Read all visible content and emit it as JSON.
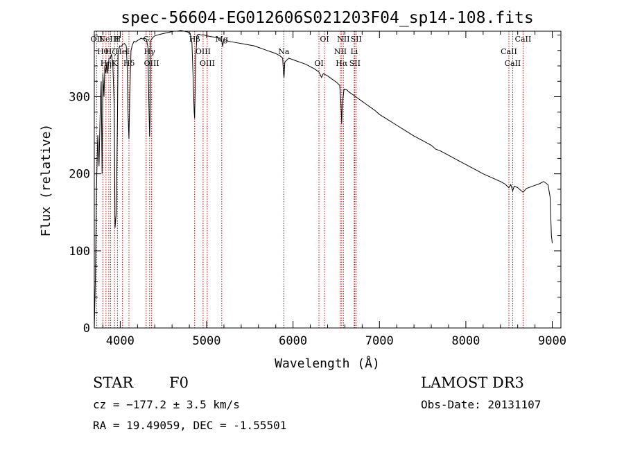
{
  "chart_data": {
    "type": "line",
    "title": "spec-56604-EG012606S021203F04_sp14-108.fits",
    "xlabel": "Wavelength (Å)",
    "ylabel": "Flux (relative)",
    "xlim": [
      3700,
      9100
    ],
    "ylim": [
      0,
      385
    ],
    "xticks": [
      4000,
      5000,
      6000,
      7000,
      8000,
      9000
    ],
    "yticks": [
      0,
      100,
      200,
      300
    ],
    "grid": false,
    "series": [
      {
        "name": "flux",
        "color": "#000000",
        "x": [
          3700,
          3712,
          3725,
          3740,
          3755,
          3770,
          3780,
          3790,
          3800,
          3812,
          3822,
          3835,
          3845,
          3855,
          3870,
          3885,
          3900,
          3915,
          3930,
          3940,
          3955,
          3968,
          3975,
          3985,
          3995,
          4010,
          4030,
          4050,
          4070,
          4080,
          4090,
          4101,
          4110,
          4125,
          4140,
          4160,
          4180,
          4200,
          4220,
          4240,
          4260,
          4280,
          4300,
          4310,
          4320,
          4330,
          4340,
          4345,
          4350,
          4360,
          4380,
          4400,
          4430,
          4460,
          4500,
          4540,
          4580,
          4620,
          4660,
          4700,
          4740,
          4780,
          4810,
          4830,
          4845,
          4856,
          4861,
          4866,
          4875,
          4890,
          4910,
          4940,
          4970,
          5000,
          5050,
          5100,
          5150,
          5180,
          5185,
          5200,
          5250,
          5300,
          5350,
          5400,
          5450,
          5500,
          5550,
          5600,
          5650,
          5700,
          5750,
          5800,
          5850,
          5880,
          5890,
          5896,
          5905,
          5950,
          6000,
          6050,
          6100,
          6150,
          6200,
          6250,
          6300,
          6330,
          6350,
          6400,
          6450,
          6500,
          6540,
          6555,
          6563,
          6570,
          6590,
          6620,
          6650,
          6700,
          6750,
          6800,
          6850,
          6900,
          6950,
          7000,
          7100,
          7200,
          7300,
          7400,
          7500,
          7600,
          7650,
          7700,
          7800,
          7900,
          8000,
          8100,
          8200,
          8300,
          8400,
          8450,
          8498,
          8520,
          8542,
          8560,
          8600,
          8662,
          8700,
          8750,
          8800,
          8850,
          8900,
          8950,
          8975,
          8990,
          9000
        ],
        "values": [
          0,
          60,
          180,
          250,
          210,
          290,
          320,
          200,
          330,
          300,
          340,
          330,
          345,
          330,
          350,
          350,
          355,
          340,
          290,
          130,
          150,
          270,
          355,
          362,
          366,
          365,
          368,
          369,
          366,
          340,
          280,
          245,
          300,
          360,
          367,
          372,
          371,
          373,
          374,
          376,
          375,
          376,
          375,
          370,
          365,
          300,
          248,
          270,
          372,
          374,
          377,
          379,
          380,
          381,
          382,
          383,
          384,
          385,
          385,
          386,
          385,
          384,
          382,
          370,
          320,
          280,
          272,
          300,
          355,
          380,
          381,
          380,
          380,
          379,
          378,
          377,
          376,
          370,
          365,
          375,
          372,
          371,
          370,
          369,
          368,
          367,
          366,
          364,
          362,
          360,
          358,
          356,
          353,
          350,
          330,
          325,
          345,
          350,
          348,
          346,
          344,
          342,
          339,
          336,
          332,
          325,
          330,
          327,
          323,
          319,
          315,
          290,
          265,
          290,
          310,
          309,
          306,
          302,
          298,
          294,
          290,
          286,
          282,
          277,
          270,
          263,
          256,
          249,
          243,
          237,
          232,
          230,
          224,
          218,
          212,
          206,
          200,
          195,
          190,
          187,
          182,
          186,
          178,
          184,
          182,
          176,
          181,
          183,
          185,
          187,
          190,
          186,
          170,
          120,
          110
        ]
      }
    ],
    "lines": [
      {
        "wavelength": 3727,
        "label": "OII"
      },
      {
        "wavelength": 3798,
        "label": "Hθ"
      },
      {
        "wavelength": 3835,
        "label": "Hη"
      },
      {
        "wavelength": 3868,
        "label": "NeIII"
      },
      {
        "wavelength": 3889,
        "label": "Hζ"
      },
      {
        "wavelength": 3934,
        "label": "K"
      },
      {
        "wavelength": 3968,
        "label": "H"
      },
      {
        "wavelength": 4026,
        "label": "HeI"
      },
      {
        "wavelength": 4101,
        "label": "Hδ"
      },
      {
        "wavelength": 4300,
        "label": "G"
      },
      {
        "wavelength": 4340,
        "label": "Hγ"
      },
      {
        "wavelength": 4363,
        "label": "OIII"
      },
      {
        "wavelength": 4861,
        "label": "Hβ"
      },
      {
        "wavelength": 4959,
        "label": "OIII"
      },
      {
        "wavelength": 5007,
        "label": "OIII"
      },
      {
        "wavelength": 5175,
        "label": "Mg"
      },
      {
        "wavelength": 5893,
        "label": "Na"
      },
      {
        "wavelength": 6300,
        "label": "OI"
      },
      {
        "wavelength": 6364,
        "label": "OI"
      },
      {
        "wavelength": 6548,
        "label": "NII"
      },
      {
        "wavelength": 6563,
        "label": "Hα"
      },
      {
        "wavelength": 6583,
        "label": "NII"
      },
      {
        "wavelength": 6708,
        "label": "Li"
      },
      {
        "wavelength": 6716,
        "label": "SII"
      },
      {
        "wavelength": 6731,
        "label": "SII"
      },
      {
        "wavelength": 8498,
        "label": "CaII"
      },
      {
        "wavelength": 8542,
        "label": "CaII"
      },
      {
        "wavelength": 8662,
        "label": "CaII"
      }
    ],
    "line_color": "#cc0000"
  },
  "info": {
    "object_class": "STAR",
    "subclass": "F0",
    "survey": "LAMOST DR3",
    "redshift": "cz = −177.2 ± 3.5 km/s",
    "obs_date": "Obs-Date: 20131107",
    "coords": "RA =  19.49059, DEC =  -1.55501"
  }
}
